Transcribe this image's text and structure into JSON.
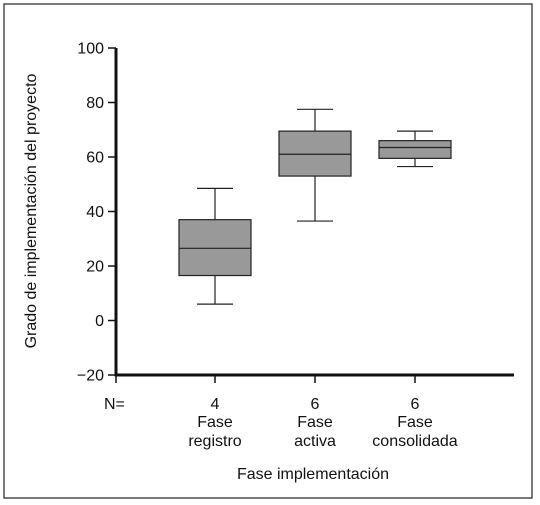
{
  "chart_data": {
    "type": "box",
    "xlabel": "Fase implementación",
    "ylabel": "Grado de implementación del proyecto",
    "ylim": [
      -20,
      100
    ],
    "yticks": [
      -20,
      0,
      20,
      40,
      60,
      80,
      100
    ],
    "yticklabels": [
      "−20",
      "0",
      "20",
      "40",
      "60",
      "80",
      "100"
    ],
    "n_label": "N=",
    "grid": false,
    "categories": [
      {
        "line1": "Fase",
        "line2": "registro",
        "n": "4",
        "whisker_low": 6,
        "q1": 16.5,
        "median": 26.5,
        "q3": 37,
        "whisker_high": 48.5
      },
      {
        "line1": "Fase",
        "line2": "activa",
        "n": "6",
        "whisker_low": 36.5,
        "q1": 53,
        "median": 61,
        "q3": 69.5,
        "whisker_high": 77.5
      },
      {
        "line1": "Fase",
        "line2": "consolidada",
        "n": "6",
        "whisker_low": 56.5,
        "q1": 59.5,
        "median": 63.5,
        "q3": 66,
        "whisker_high": 69.5
      }
    ],
    "box_fill": "#999999"
  }
}
